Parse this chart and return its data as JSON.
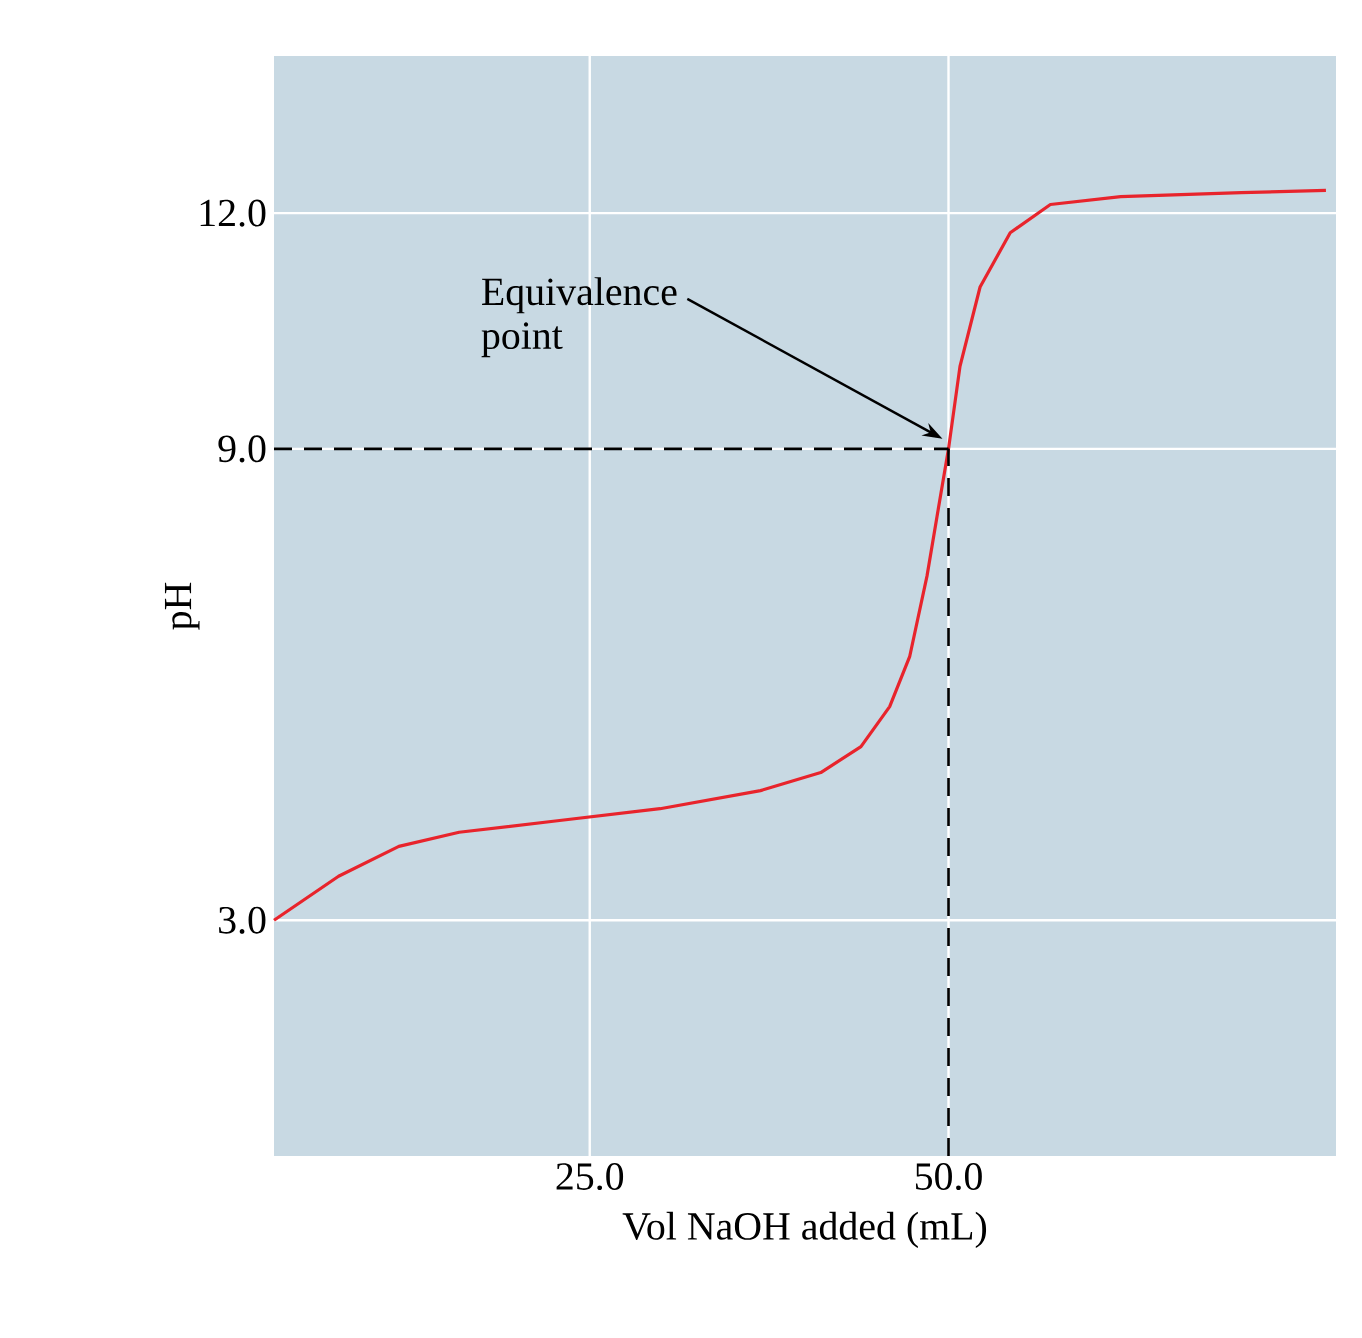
{
  "chart_data": {
    "type": "line",
    "xlabel": "Vol NaOH added (mL)",
    "ylabel": "pH",
    "xlim": [
      3,
      77
    ],
    "ylim": [
      0,
      14
    ],
    "xticks": [
      {
        "value": 25,
        "label": "25.0"
      },
      {
        "value": 50,
        "label": "50.0"
      }
    ],
    "yticks": [
      {
        "value": 3,
        "label": "3.0"
      },
      {
        "value": 9,
        "label": "9.0"
      },
      {
        "value": 12,
        "label": "12.0"
      }
    ],
    "grid": true,
    "marker": "none",
    "line_style": "solid",
    "series": [
      {
        "color": "#e8242c",
        "x": [
          3,
          7.5,
          11.7,
          15.9,
          22.9,
          29.9,
          36.9,
          41.1,
          43.9,
          45.9,
          47.3,
          48.5,
          49.2,
          50,
          50.8,
          52.2,
          54.3,
          57.1,
          62,
          70.4,
          76.3
        ],
        "values": [
          3.0,
          3.56,
          3.94,
          4.12,
          4.27,
          4.42,
          4.65,
          4.88,
          5.21,
          5.72,
          6.36,
          7.38,
          8.14,
          9.0,
          10.05,
          11.06,
          11.75,
          12.11,
          12.21,
          12.26,
          12.29
        ]
      }
    ],
    "ref_lines": [
      {
        "axis": "y",
        "value": 9,
        "color": "#000000",
        "line_style": "dashed"
      },
      {
        "axis": "x",
        "value": 50,
        "color": "#000000",
        "line_style": "dashed"
      }
    ],
    "annotations": [
      "Equivalence point"
    ]
  }
}
